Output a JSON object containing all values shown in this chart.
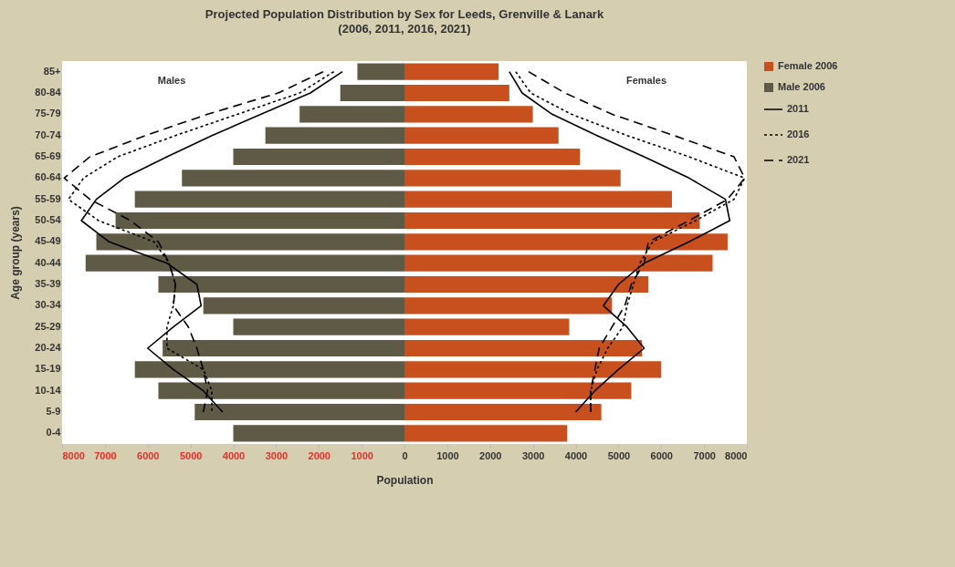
{
  "chart_data": {
    "type": "bar",
    "orientation": "horizontal",
    "title": "Projected Population Distribution  by Sex for Leeds, Grenville & Lanark",
    "subtitle": "(2006, 2011, 2016, 2021)",
    "xlabel": "Population",
    "ylabel": "Age group (years)",
    "categories": [
      "85+",
      "80-84",
      "75-79",
      "70-74",
      "65-69",
      "60-64",
      "55-59",
      "50-54",
      "45-49",
      "40-44",
      "35-39",
      "30-34",
      "25-29",
      "20-24",
      "15-19",
      "10-14",
      "5-9",
      "0-4"
    ],
    "series": [
      {
        "name": "Female 2006",
        "color": "#c8501e",
        "values": [
          2200,
          2450,
          3000,
          3600,
          4100,
          5050,
          6250,
          6900,
          7550,
          7200,
          5700,
          4850,
          3850,
          5550,
          6000,
          5300,
          4600,
          3800
        ]
      },
      {
        "name": "Male 2006",
        "color": "#5e5a45",
        "values": [
          -1100,
          -1500,
          -2450,
          -3250,
          -4000,
          -5200,
          -6300,
          -6750,
          -7200,
          -7450,
          -5750,
          -4700,
          -4000,
          -5650,
          -6300,
          -5750,
          -4900,
          -4000
        ]
      },
      {
        "name": "2011",
        "type": "line",
        "line_style": "solid",
        "color": "#000000",
        "values": [
          2450,
          2750,
          3450,
          4500,
          5600,
          6650,
          7500,
          7600,
          6650,
          5600,
          5000,
          4650,
          5200,
          5600,
          5000,
          4450,
          4000,
          null
        ]
      },
      {
        "name": "2016",
        "type": "line",
        "line_style": "dotted",
        "color": "#000000",
        "values": [
          2600,
          2950,
          3900,
          5200,
          6650,
          7950,
          7700,
          6800,
          5800,
          5500,
          5350,
          5200,
          5100,
          4750,
          4500,
          4350,
          4350,
          null
        ]
      },
      {
        "name": "2021",
        "type": "line",
        "line_style": "dashed",
        "color": "#000000",
        "values": [
          2900,
          3750,
          4850,
          6300,
          7700,
          7950,
          7550,
          6650,
          5700,
          5600,
          5300,
          5150,
          4850,
          4550,
          4450,
          4350,
          4350,
          null
        ]
      },
      {
        "type": "line",
        "line_style": "solid",
        "color": "#000000",
        "values": [
          -1450,
          -2200,
          -3350,
          -4500,
          -5550,
          -6550,
          -7200,
          -7550,
          -6900,
          -5550,
          -4850,
          -4750,
          -5400,
          -6000,
          -5400,
          -4700,
          -4250,
          null
        ]
      },
      {
        "type": "line",
        "line_style": "dotted",
        "color": "#000000",
        "values": [
          -1650,
          -2450,
          -3900,
          -5350,
          -6700,
          -7500,
          -7850,
          -7150,
          -5850,
          -5500,
          -5350,
          -5400,
          -5550,
          -5550,
          -4700,
          -4500,
          -4500,
          null
        ]
      },
      {
        "type": "line",
        "line_style": "dashed",
        "color": "#000000",
        "values": [
          -1900,
          -2950,
          -4600,
          -6050,
          -7350,
          -7950,
          -7350,
          -6400,
          -5750,
          -5500,
          -5350,
          -5400,
          -5050,
          -4850,
          -4700,
          -4600,
          -4700,
          null
        ]
      }
    ],
    "xlim": [
      -8000,
      8000
    ],
    "xticks": [
      {
        "value": -8000,
        "label": "8000"
      },
      {
        "value": -7000,
        "label": "7000"
      },
      {
        "value": -6000,
        "label": "6000"
      },
      {
        "value": -5000,
        "label": "5000"
      },
      {
        "value": -4000,
        "label": "4000"
      },
      {
        "value": -3000,
        "label": "3000"
      },
      {
        "value": -2000,
        "label": "2000"
      },
      {
        "value": -1000,
        "label": "1000"
      },
      0,
      1000,
      2000,
      3000,
      4000,
      5000,
      6000,
      7000,
      8000
    ],
    "annotations": [
      "Males",
      "Females"
    ],
    "stacked": true,
    "legend": "right"
  }
}
